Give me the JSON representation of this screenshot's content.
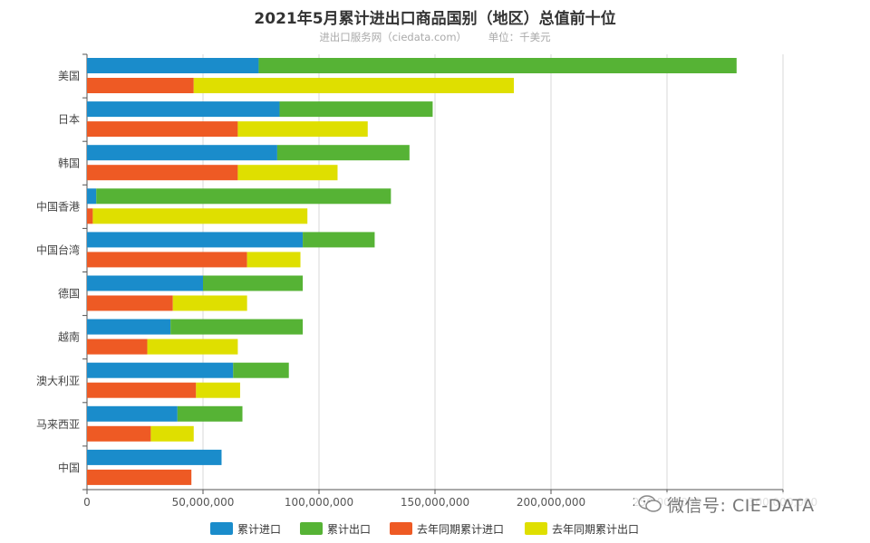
{
  "title": "2021年5月累计进出口商品国别（地区）总值前十位",
  "subtitle_source": "进出口服务网（ciedata.com）",
  "subtitle_unit": "单位：千美元",
  "watermark": "微信号: CIE-DATA",
  "chart_data": {
    "type": "bar",
    "orientation": "horizontal",
    "stacked": true,
    "categories": [
      "美国",
      "日本",
      "韩国",
      "中国香港",
      "中国台湾",
      "德国",
      "越南",
      "澳大利亚",
      "马来西亚",
      "中国"
    ],
    "xlim": [
      0,
      300000000
    ],
    "xticks": [
      0,
      50000000,
      100000000,
      150000000,
      200000000,
      250000000,
      300000000
    ],
    "xtick_labels": [
      "0",
      "50,000,000",
      "100,000,000",
      "150,000,000",
      "200,000,000",
      "250,000,000",
      "300,000,000"
    ],
    "grid": true,
    "legend_position": "bottom",
    "stacks": [
      {
        "stack": "current",
        "series": [
          {
            "name": "累计进口",
            "color": "#1a8ccb",
            "values": [
              74000000,
              83000000,
              82000000,
              4000000,
              93000000,
              50000000,
              36000000,
              63000000,
              39000000,
              58000000
            ]
          },
          {
            "name": "累计出口",
            "color": "#56b335",
            "values": [
              206000000,
              66000000,
              57000000,
              127000000,
              31000000,
              43000000,
              57000000,
              24000000,
              28000000,
              0
            ]
          }
        ]
      },
      {
        "stack": "last_year",
        "series": [
          {
            "name": "去年同期累计进口",
            "color": "#ee5a24",
            "values": [
              46000000,
              65000000,
              65000000,
              2500000,
              69000000,
              37000000,
              26000000,
              47000000,
              27500000,
              45000000
            ]
          },
          {
            "name": "去年同期累计出口",
            "color": "#dfdf00",
            "values": [
              138000000,
              56000000,
              43000000,
              92500000,
              23000000,
              32000000,
              39000000,
              19000000,
              18500000,
              0
            ]
          }
        ]
      }
    ]
  }
}
